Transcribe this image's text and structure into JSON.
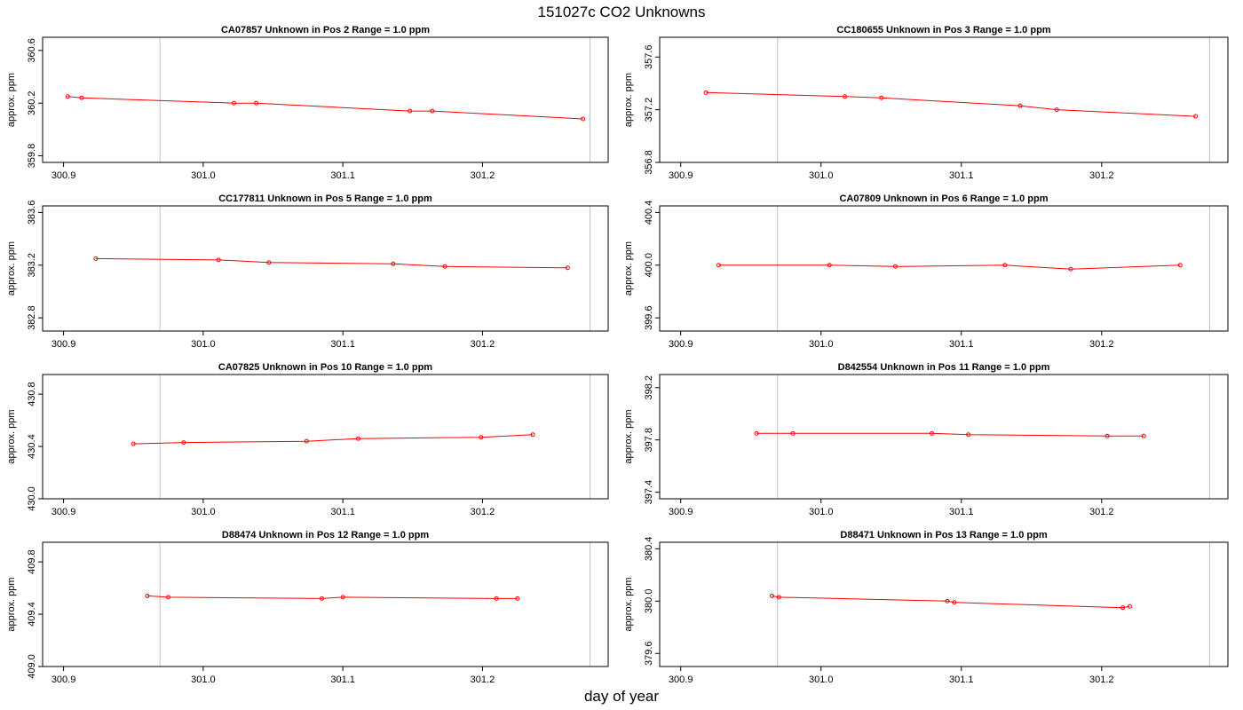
{
  "page": {
    "title": "151027c  CO2 Unknowns",
    "xlabel": "day of year"
  },
  "colors": {
    "series": "#ff0000",
    "marker_line": "#c0c0c0",
    "frame": "#000000"
  },
  "chart_data": [
    {
      "type": "line",
      "title": "CA07857    Unknown in Pos 2         Range = 1.0 ppm",
      "ylabel": "approx. ppm",
      "xlim": [
        300.885,
        301.29
      ],
      "ylim": [
        359.75,
        360.7
      ],
      "xticks": [
        "300.9",
        "301.0",
        "301.1",
        "301.2"
      ],
      "yticks": [
        "359.8",
        "360.2",
        "360.6"
      ],
      "ytick_values": [
        359.8,
        360.2,
        360.6
      ],
      "vlines": [
        300.969,
        301.277
      ],
      "x": [
        300.903,
        300.913,
        301.022,
        301.038,
        301.148,
        301.164,
        301.272
      ],
      "y": [
        360.25,
        360.24,
        360.2,
        360.2,
        360.14,
        360.14,
        360.08
      ]
    },
    {
      "type": "line",
      "title": "CC180655    Unknown in Pos 3         Range = 1.0 ppm",
      "ylabel": "approx. ppm",
      "xlim": [
        300.885,
        301.29
      ],
      "ylim": [
        356.8,
        357.75
      ],
      "xticks": [
        "300.9",
        "301.0",
        "301.1",
        "301.2"
      ],
      "yticks": [
        "356.8",
        "357.2",
        "357.6"
      ],
      "ytick_values": [
        356.8,
        357.2,
        357.6
      ],
      "vlines": [
        300.969,
        301.277
      ],
      "x": [
        300.918,
        301.017,
        301.043,
        301.142,
        301.168,
        301.267
      ],
      "y": [
        357.33,
        357.3,
        357.29,
        357.23,
        357.2,
        357.15
      ]
    },
    {
      "type": "line",
      "title": "CC177811    Unknown in Pos 5         Range = 1.0 ppm",
      "ylabel": "approx. ppm",
      "xlim": [
        300.885,
        301.29
      ],
      "ylim": [
        382.7,
        383.65
      ],
      "xticks": [
        "300.9",
        "301.0",
        "301.1",
        "301.2"
      ],
      "yticks": [
        "382.8",
        "383.2",
        "383.6"
      ],
      "ytick_values": [
        382.8,
        383.2,
        383.6
      ],
      "vlines": [
        300.969,
        301.277
      ],
      "x": [
        300.923,
        301.011,
        301.047,
        301.136,
        301.173,
        301.261
      ],
      "y": [
        383.25,
        383.24,
        383.22,
        383.21,
        383.19,
        383.18
      ]
    },
    {
      "type": "line",
      "title": "CA07809    Unknown in Pos 6         Range = 1.0 ppm",
      "ylabel": "approx. ppm",
      "xlim": [
        300.885,
        301.29
      ],
      "ylim": [
        399.5,
        400.45
      ],
      "xticks": [
        "300.9",
        "301.0",
        "301.1",
        "301.2"
      ],
      "yticks": [
        "399.6",
        "400.0",
        "400.4"
      ],
      "ytick_values": [
        399.6,
        400.0,
        400.4
      ],
      "vlines": [
        300.969,
        301.277
      ],
      "x": [
        300.927,
        301.006,
        301.053,
        301.131,
        301.178,
        301.256
      ],
      "y": [
        400.0,
        400.0,
        399.99,
        400.0,
        399.97,
        400.0
      ]
    },
    {
      "type": "line",
      "title": "CA07825    Unknown in Pos 10         Range = 1.0 ppm",
      "ylabel": "approx. ppm",
      "xlim": [
        300.885,
        301.29
      ],
      "ylim": [
        430.0,
        430.95
      ],
      "xticks": [
        "300.9",
        "301.0",
        "301.1",
        "301.2"
      ],
      "yticks": [
        "430.0",
        "430.4",
        "430.8"
      ],
      "ytick_values": [
        430.0,
        430.4,
        430.8
      ],
      "vlines": [
        300.969,
        301.277
      ],
      "x": [
        300.95,
        300.986,
        301.074,
        301.111,
        301.199,
        301.236
      ],
      "y": [
        430.42,
        430.43,
        430.44,
        430.46,
        430.47,
        430.49
      ]
    },
    {
      "type": "line",
      "title": "D842554    Unknown in Pos 11         Range = 1.0 ppm",
      "ylabel": "approx. ppm",
      "xlim": [
        300.885,
        301.29
      ],
      "ylim": [
        397.35,
        398.3
      ],
      "xticks": [
        "300.9",
        "301.0",
        "301.1",
        "301.2"
      ],
      "yticks": [
        "397.4",
        "397.8",
        "398.2"
      ],
      "ytick_values": [
        397.4,
        397.8,
        398.2
      ],
      "vlines": [
        300.969,
        301.277
      ],
      "x": [
        300.954,
        300.98,
        301.079,
        301.105,
        301.204,
        301.23
      ],
      "y": [
        397.85,
        397.85,
        397.85,
        397.84,
        397.83,
        397.83
      ]
    },
    {
      "type": "line",
      "title": "D88474    Unknown in Pos 12         Range = 1.0 ppm",
      "ylabel": "approx. ppm",
      "xlim": [
        300.885,
        301.29
      ],
      "ylim": [
        409.0,
        409.95
      ],
      "xticks": [
        "300.9",
        "301.0",
        "301.1",
        "301.2"
      ],
      "yticks": [
        "409.0",
        "409.4",
        "409.8"
      ],
      "ytick_values": [
        409.0,
        409.4,
        409.8
      ],
      "vlines": [
        300.969,
        301.277
      ],
      "x": [
        300.96,
        300.975,
        301.085,
        301.1,
        301.21,
        301.225
      ],
      "y": [
        409.54,
        409.53,
        409.52,
        409.53,
        409.52,
        409.52
      ]
    },
    {
      "type": "line",
      "title": "D88471    Unknown in Pos 13         Range = 1.0 ppm",
      "ylabel": "approx. ppm",
      "xlim": [
        300.885,
        301.29
      ],
      "ylim": [
        379.5,
        380.45
      ],
      "xticks": [
        "300.9",
        "301.0",
        "301.1",
        "301.2"
      ],
      "yticks": [
        "379.6",
        "380.0",
        "380.4"
      ],
      "ytick_values": [
        379.6,
        380.0,
        380.4
      ],
      "vlines": [
        300.969,
        301.277
      ],
      "x": [
        300.965,
        300.97,
        301.09,
        301.095,
        301.215,
        301.22
      ],
      "y": [
        380.04,
        380.03,
        380.0,
        379.99,
        379.95,
        379.96
      ]
    }
  ]
}
